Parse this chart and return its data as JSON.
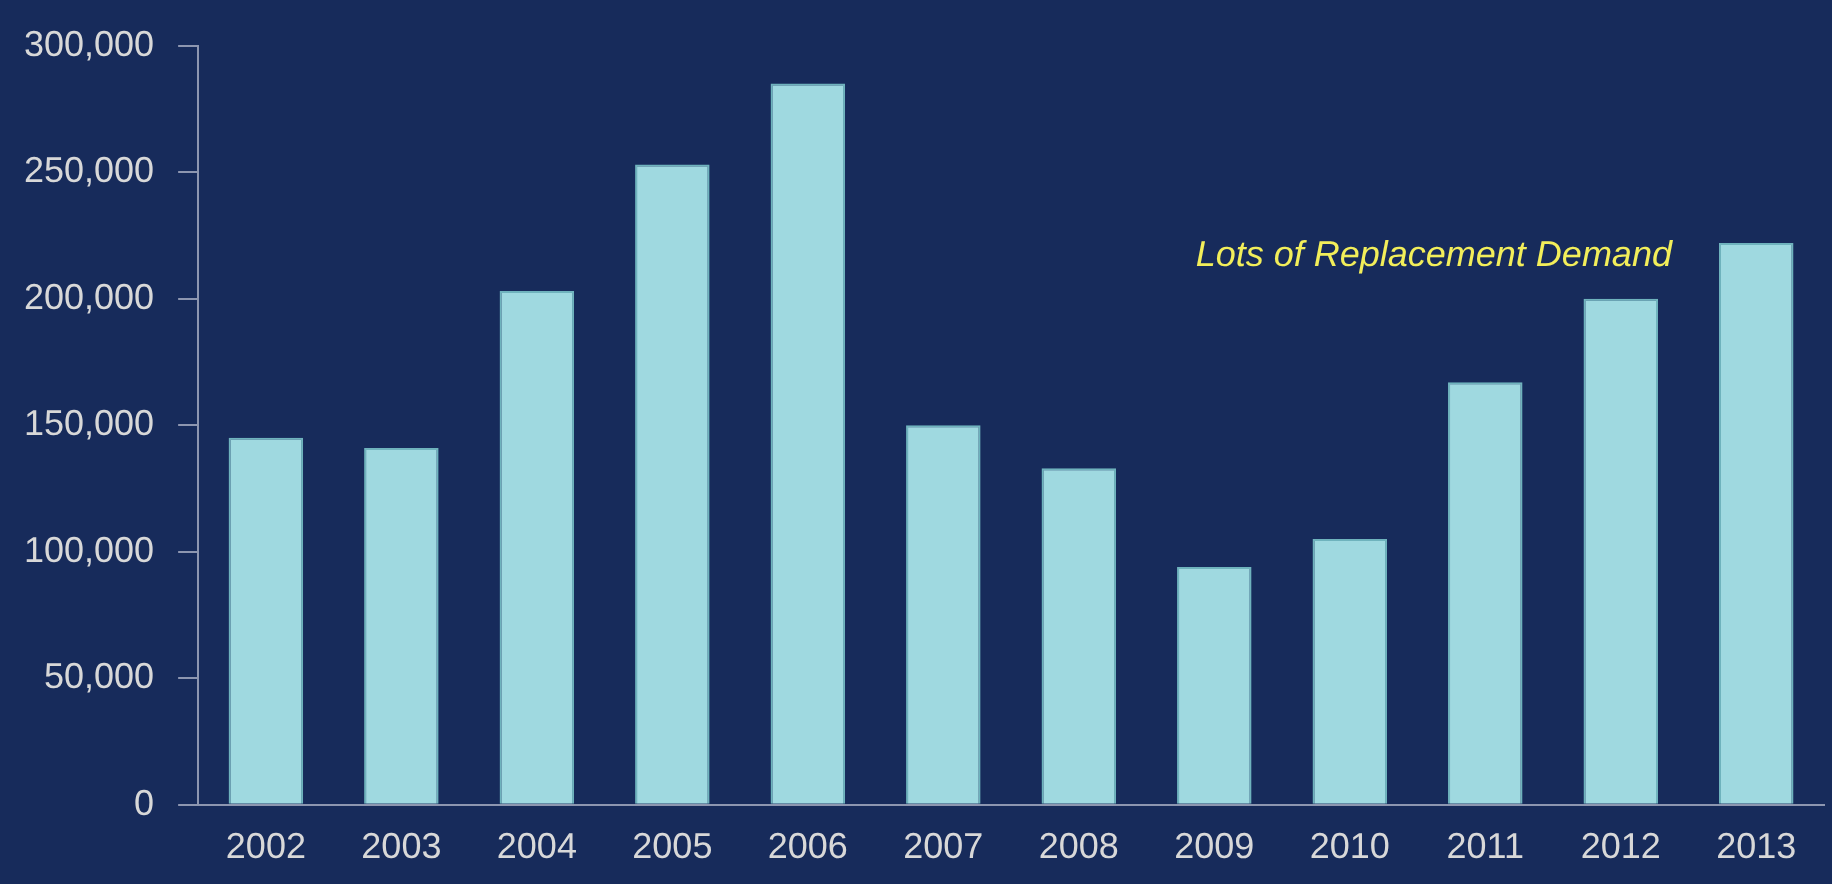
{
  "chart_data": {
    "type": "bar",
    "categories": [
      "2002",
      "2003",
      "2004",
      "2005",
      "2006",
      "2007",
      "2008",
      "2009",
      "2010",
      "2011",
      "2012",
      "2013"
    ],
    "values": [
      145000,
      141000,
      203000,
      253000,
      285000,
      150000,
      133000,
      94000,
      105000,
      167000,
      200000,
      222000
    ],
    "color": "#9fd9e0",
    "ylim": [
      0,
      300000
    ],
    "yticks": [
      0,
      {
        "value": 50000,
        "label": "50,000"
      },
      {
        "value": 100000,
        "label": "100,000"
      },
      {
        "value": 150000,
        "label": "150,000"
      },
      {
        "value": 200000,
        "label": "200,000"
      },
      {
        "value": 250000,
        "label": "250,000"
      },
      {
        "value": 300000,
        "label": "300,000"
      }
    ],
    "grid": false,
    "annotations": [
      "Lots of Replacement Demand"
    ]
  }
}
